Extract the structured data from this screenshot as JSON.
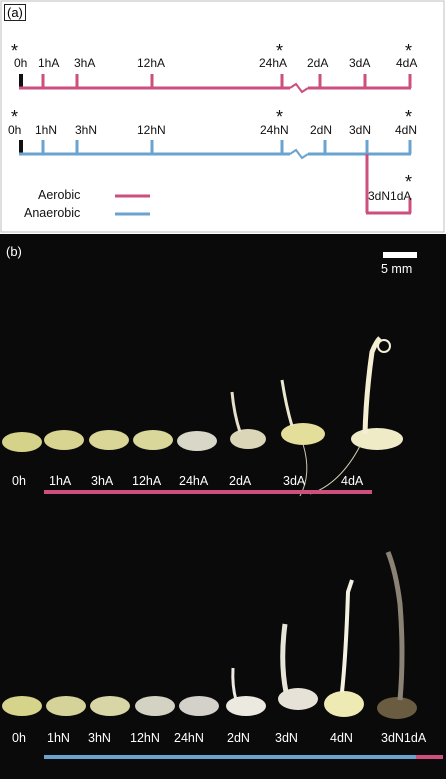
{
  "panel_a": {
    "label": "(a)",
    "aerobic_row": [
      "0h",
      "1hA",
      "3hA",
      "12hA",
      "24hA",
      "2dA",
      "3dA",
      "4dA"
    ],
    "anaerobic_row": [
      "0h",
      "1hN",
      "3hN",
      "12hN",
      "24hN",
      "2dN",
      "3dN",
      "4dN"
    ],
    "transfer_label": "3dN1dA",
    "asterisk": "*",
    "legend": {
      "aerobic": "Aerobic",
      "anaerobic": "Anaerobic"
    }
  },
  "panel_b": {
    "label": "(b)",
    "scale_bar": "5 mm",
    "aerobic_row": [
      "0h",
      "1hA",
      "3hA",
      "12hA",
      "24hA",
      "2dA",
      "3dA",
      "4dA"
    ],
    "anaerobic_row": [
      "0h",
      "1hN",
      "3hN",
      "12hN",
      "24hN",
      "2dN",
      "3dN",
      "4dN",
      "3dN1dA"
    ]
  },
  "colors": {
    "aerobic": "#cc4f7e",
    "anaerobic": "#6aa3cf"
  }
}
